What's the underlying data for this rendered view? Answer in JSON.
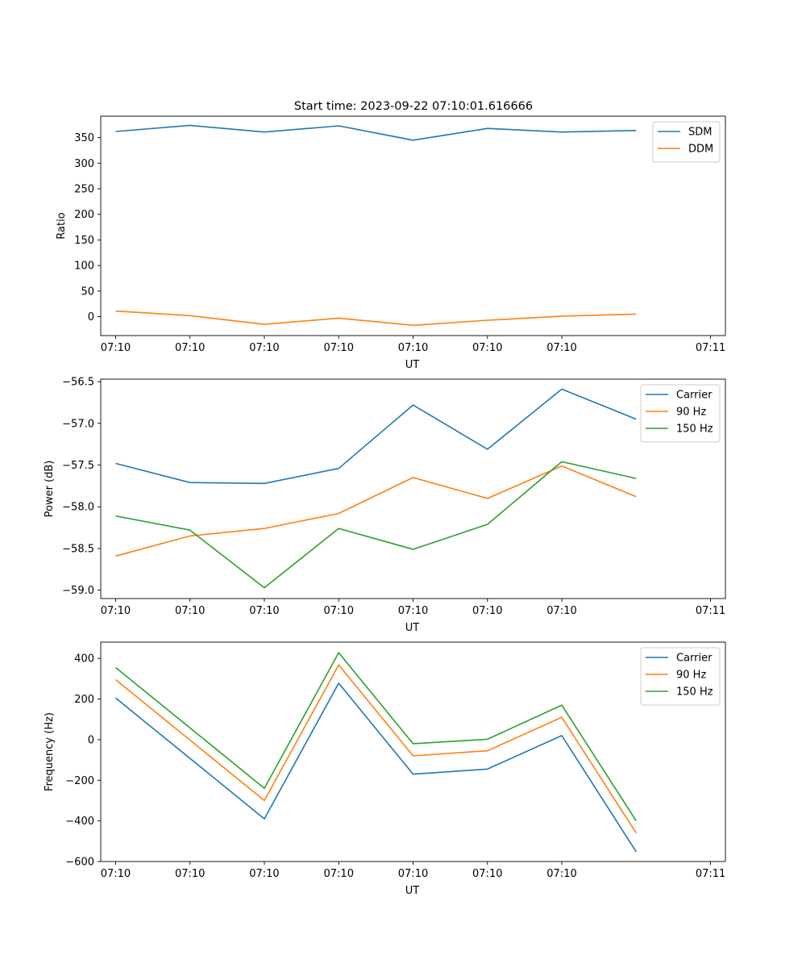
{
  "figure": {
    "title": "Start time: 2023-09-22 07:10:01.616666"
  },
  "chart_data": [
    {
      "type": "line",
      "title": "Start time: 2023-09-22 07:10:01.616666",
      "xlabel": "UT",
      "ylabel": "Ratio",
      "x_tick_labels": [
        "07:10",
        "07:10",
        "07:10",
        "07:10",
        "07:10",
        "07:10",
        "07:10"
      ],
      "x_tick_last": "07:11",
      "ylim": [
        -37,
        392
      ],
      "y_ticks": [
        0,
        50,
        100,
        150,
        200,
        250,
        300,
        350
      ],
      "tick_decimals": 0,
      "legend_position": "top-right",
      "grid": false,
      "x": [
        1,
        2,
        3,
        4,
        5,
        6,
        7,
        8
      ],
      "series": [
        {
          "name": "SDM",
          "color": "#1f77b4",
          "values": [
            362,
            374,
            361,
            373,
            345,
            368,
            361,
            364
          ]
        },
        {
          "name": "DDM",
          "color": "#ff7f0e",
          "values": [
            11,
            2,
            -15,
            -3,
            -17,
            -7,
            1,
            5
          ]
        }
      ]
    },
    {
      "type": "line",
      "title": "",
      "xlabel": "UT",
      "ylabel": "Power (dB)",
      "x_tick_labels": [
        "07:10",
        "07:10",
        "07:10",
        "07:10",
        "07:10",
        "07:10",
        "07:10"
      ],
      "x_tick_last": "07:11",
      "ylim": [
        -59.1,
        -56.47
      ],
      "y_ticks": [
        -59.0,
        -58.5,
        -58.0,
        -57.5,
        -57.0,
        -56.5
      ],
      "tick_decimals": 1,
      "legend_position": "top-right",
      "grid": false,
      "x": [
        1,
        2,
        3,
        4,
        5,
        6,
        7,
        8
      ],
      "series": [
        {
          "name": "Carrier",
          "color": "#1f77b4",
          "values": [
            -57.48,
            -57.71,
            -57.72,
            -57.54,
            -56.78,
            -57.31,
            -56.59,
            -56.95
          ]
        },
        {
          "name": "90 Hz",
          "color": "#ff7f0e",
          "values": [
            -58.59,
            -58.35,
            -58.26,
            -58.08,
            -57.65,
            -57.9,
            -57.51,
            -57.88
          ]
        },
        {
          "name": "150 Hz",
          "color": "#2ca02c",
          "values": [
            -58.11,
            -58.28,
            -58.97,
            -58.26,
            -58.51,
            -58.21,
            -57.46,
            -57.66
          ]
        }
      ]
    },
    {
      "type": "line",
      "title": "",
      "xlabel": "UT",
      "ylabel": "Frequency (Hz)",
      "x_tick_labels": [
        "07:10",
        "07:10",
        "07:10",
        "07:10",
        "07:10",
        "07:10",
        "07:10"
      ],
      "x_tick_last": "07:11",
      "ylim": [
        -600,
        480
      ],
      "y_ticks": [
        -600,
        -400,
        -200,
        0,
        200,
        400
      ],
      "tick_decimals": 0,
      "legend_position": "top-right",
      "grid": false,
      "x": [
        1,
        2,
        3,
        4,
        5,
        6,
        7,
        8
      ],
      "series": [
        {
          "name": "Carrier",
          "color": "#1f77b4",
          "values": [
            205,
            null,
            -390,
            278,
            -170,
            -145,
            20,
            -552
          ]
        },
        {
          "name": "90 Hz",
          "color": "#ff7f0e",
          "values": [
            295,
            null,
            -300,
            368,
            -80,
            -55,
            110,
            -460
          ]
        },
        {
          "name": "150 Hz",
          "color": "#2ca02c",
          "values": [
            355,
            null,
            -240,
            428,
            -20,
            2,
            170,
            -400
          ]
        }
      ]
    }
  ]
}
